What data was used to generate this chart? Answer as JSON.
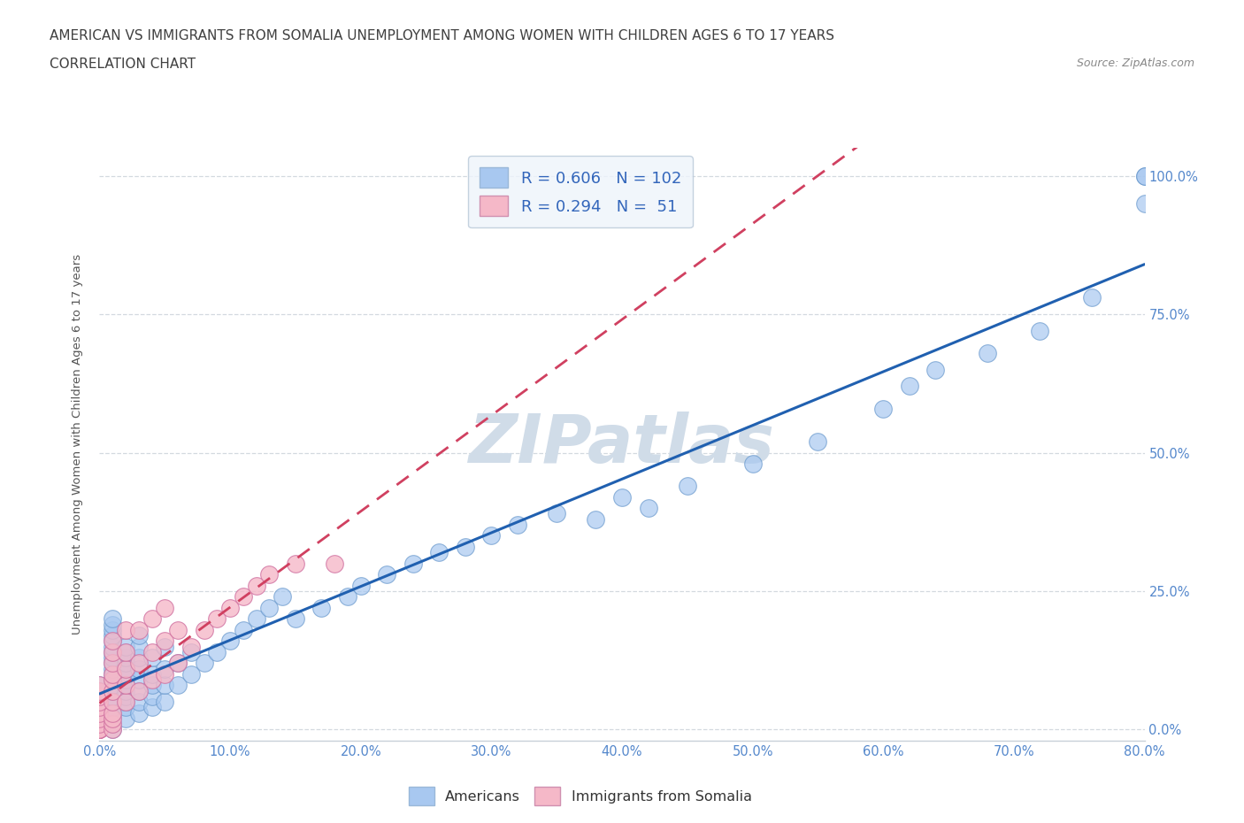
{
  "title_line1": "AMERICAN VS IMMIGRANTS FROM SOMALIA UNEMPLOYMENT AMONG WOMEN WITH CHILDREN AGES 6 TO 17 YEARS",
  "title_line2": "CORRELATION CHART",
  "source": "Source: ZipAtlas.com",
  "ylabel": "Unemployment Among Women with Children Ages 6 to 17 years",
  "xlim": [
    0.0,
    0.8
  ],
  "ylim": [
    -0.02,
    1.05
  ],
  "americans_R": 0.606,
  "americans_N": 102,
  "somalia_R": 0.294,
  "somalia_N": 51,
  "americans_color": "#a8c8f0",
  "somalia_color": "#f5b8c8",
  "americans_line_color": "#2060b0",
  "somalia_line_color": "#d04060",
  "watermark_color": "#d0dce8",
  "background_color": "#ffffff",
  "grid_color": "#c8d0d8",
  "legend_bg_color": "#eef4fb",
  "title_color": "#404040",
  "axis_tick_color": "#5588cc",
  "legend_text_color": "#3366bb",
  "americans_x": [
    0.0,
    0.0,
    0.0,
    0.0,
    0.0,
    0.0,
    0.0,
    0.0,
    0.01,
    0.01,
    0.01,
    0.01,
    0.01,
    0.01,
    0.01,
    0.01,
    0.01,
    0.01,
    0.01,
    0.01,
    0.01,
    0.01,
    0.01,
    0.01,
    0.01,
    0.01,
    0.01,
    0.01,
    0.01,
    0.01,
    0.01,
    0.01,
    0.01,
    0.01,
    0.01,
    0.02,
    0.02,
    0.02,
    0.02,
    0.02,
    0.02,
    0.02,
    0.02,
    0.02,
    0.02,
    0.02,
    0.02,
    0.02,
    0.03,
    0.03,
    0.03,
    0.03,
    0.03,
    0.03,
    0.03,
    0.03,
    0.04,
    0.04,
    0.04,
    0.04,
    0.04,
    0.05,
    0.05,
    0.05,
    0.05,
    0.06,
    0.06,
    0.07,
    0.07,
    0.08,
    0.09,
    0.1,
    0.11,
    0.12,
    0.13,
    0.14,
    0.15,
    0.17,
    0.19,
    0.2,
    0.22,
    0.24,
    0.26,
    0.28,
    0.3,
    0.32,
    0.35,
    0.38,
    0.4,
    0.42,
    0.45,
    0.5,
    0.55,
    0.6,
    0.62,
    0.64,
    0.68,
    0.72,
    0.76,
    0.8,
    0.8,
    0.8
  ],
  "americans_y": [
    0.02,
    0.03,
    0.04,
    0.05,
    0.05,
    0.06,
    0.07,
    0.08,
    0.0,
    0.01,
    0.02,
    0.03,
    0.03,
    0.04,
    0.04,
    0.05,
    0.05,
    0.06,
    0.06,
    0.07,
    0.07,
    0.08,
    0.08,
    0.09,
    0.1,
    0.11,
    0.12,
    0.13,
    0.14,
    0.15,
    0.16,
    0.17,
    0.18,
    0.19,
    0.2,
    0.02,
    0.04,
    0.05,
    0.06,
    0.07,
    0.08,
    0.09,
    0.1,
    0.11,
    0.12,
    0.13,
    0.14,
    0.15,
    0.03,
    0.05,
    0.07,
    0.09,
    0.11,
    0.13,
    0.15,
    0.17,
    0.04,
    0.06,
    0.08,
    0.1,
    0.13,
    0.05,
    0.08,
    0.11,
    0.15,
    0.08,
    0.12,
    0.1,
    0.14,
    0.12,
    0.14,
    0.16,
    0.18,
    0.2,
    0.22,
    0.24,
    0.2,
    0.22,
    0.24,
    0.26,
    0.28,
    0.3,
    0.32,
    0.33,
    0.35,
    0.37,
    0.39,
    0.38,
    0.42,
    0.4,
    0.44,
    0.48,
    0.52,
    0.58,
    0.62,
    0.65,
    0.68,
    0.72,
    0.78,
    0.95,
    1.0,
    1.0
  ],
  "somalia_x": [
    0.0,
    0.0,
    0.0,
    0.0,
    0.0,
    0.0,
    0.0,
    0.0,
    0.0,
    0.0,
    0.0,
    0.0,
    0.0,
    0.0,
    0.0,
    0.01,
    0.01,
    0.01,
    0.01,
    0.01,
    0.01,
    0.01,
    0.01,
    0.01,
    0.01,
    0.01,
    0.02,
    0.02,
    0.02,
    0.02,
    0.02,
    0.03,
    0.03,
    0.03,
    0.04,
    0.04,
    0.04,
    0.05,
    0.05,
    0.05,
    0.06,
    0.06,
    0.07,
    0.08,
    0.09,
    0.1,
    0.11,
    0.12,
    0.13,
    0.15,
    0.18
  ],
  "somalia_y": [
    0.0,
    0.0,
    0.0,
    0.0,
    0.0,
    0.0,
    0.0,
    0.01,
    0.02,
    0.03,
    0.04,
    0.05,
    0.06,
    0.07,
    0.08,
    0.0,
    0.01,
    0.02,
    0.03,
    0.05,
    0.07,
    0.09,
    0.1,
    0.12,
    0.14,
    0.16,
    0.05,
    0.08,
    0.11,
    0.14,
    0.18,
    0.07,
    0.12,
    0.18,
    0.09,
    0.14,
    0.2,
    0.1,
    0.16,
    0.22,
    0.12,
    0.18,
    0.15,
    0.18,
    0.2,
    0.22,
    0.24,
    0.26,
    0.28,
    0.3,
    0.3
  ]
}
